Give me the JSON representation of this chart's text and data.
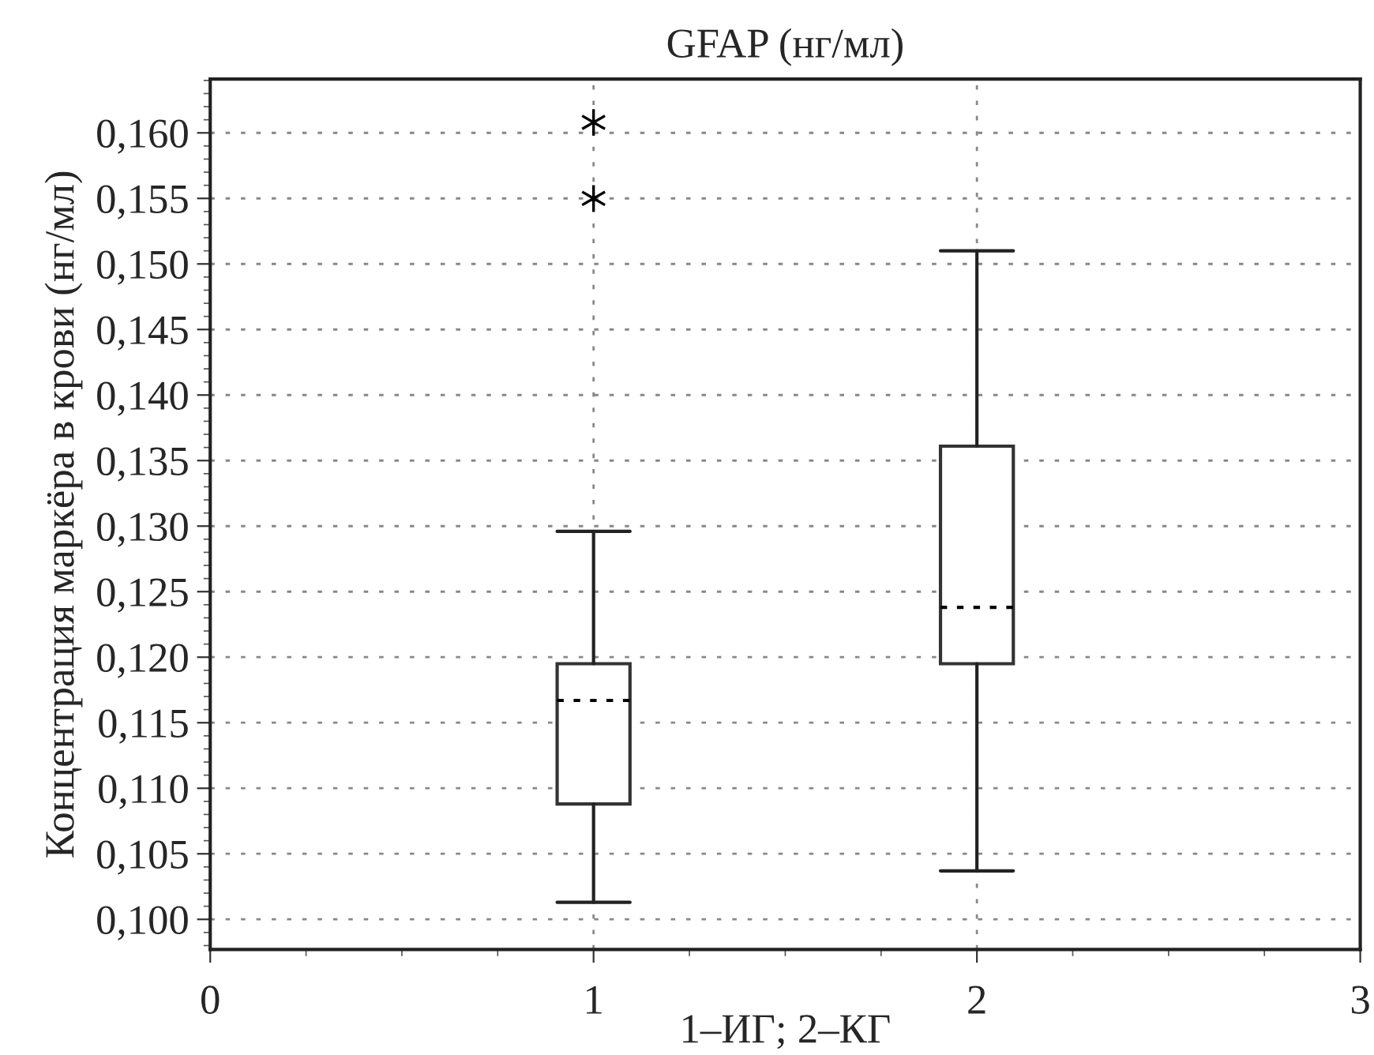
{
  "chart_data": {
    "type": "box",
    "title": "GFAP (нг/мл)",
    "xlabel": "1–ИГ; 2–КГ",
    "ylabel": "Концентрация маркёра в крови (нг/мл)",
    "x": [
      1,
      2
    ],
    "boxes": [
      {
        "low": 0.1013,
        "q1": 0.1088,
        "median": 0.1167,
        "q3": 0.1195,
        "high": 0.1296,
        "outliers": [
          0.1608,
          0.155
        ]
      },
      {
        "low": 0.1037,
        "q1": 0.1195,
        "median": 0.1238,
        "q3": 0.1361,
        "high": 0.151
      }
    ],
    "xlim": [
      0,
      3
    ],
    "xticks": [
      0,
      1,
      2,
      3
    ],
    "ylim": [
      0.0977,
      0.1641
    ],
    "yticks": [
      {
        "value": 0.1,
        "label": "0,100"
      },
      {
        "value": 0.105,
        "label": "0,105"
      },
      {
        "value": 0.11,
        "label": "0,110"
      },
      {
        "value": 0.115,
        "label": "0,115"
      },
      {
        "value": 0.12,
        "label": "0,120"
      },
      {
        "value": 0.125,
        "label": "0,125"
      },
      {
        "value": 0.13,
        "label": "0,130"
      },
      {
        "value": 0.135,
        "label": "0,135"
      },
      {
        "value": 0.14,
        "label": "0,140"
      },
      {
        "value": 0.145,
        "label": "0,145"
      },
      {
        "value": 0.15,
        "label": "0,150"
      },
      {
        "value": 0.155,
        "label": "0,155"
      },
      {
        "value": 0.16,
        "label": "0,160"
      }
    ],
    "grid": true,
    "marker": "star"
  }
}
